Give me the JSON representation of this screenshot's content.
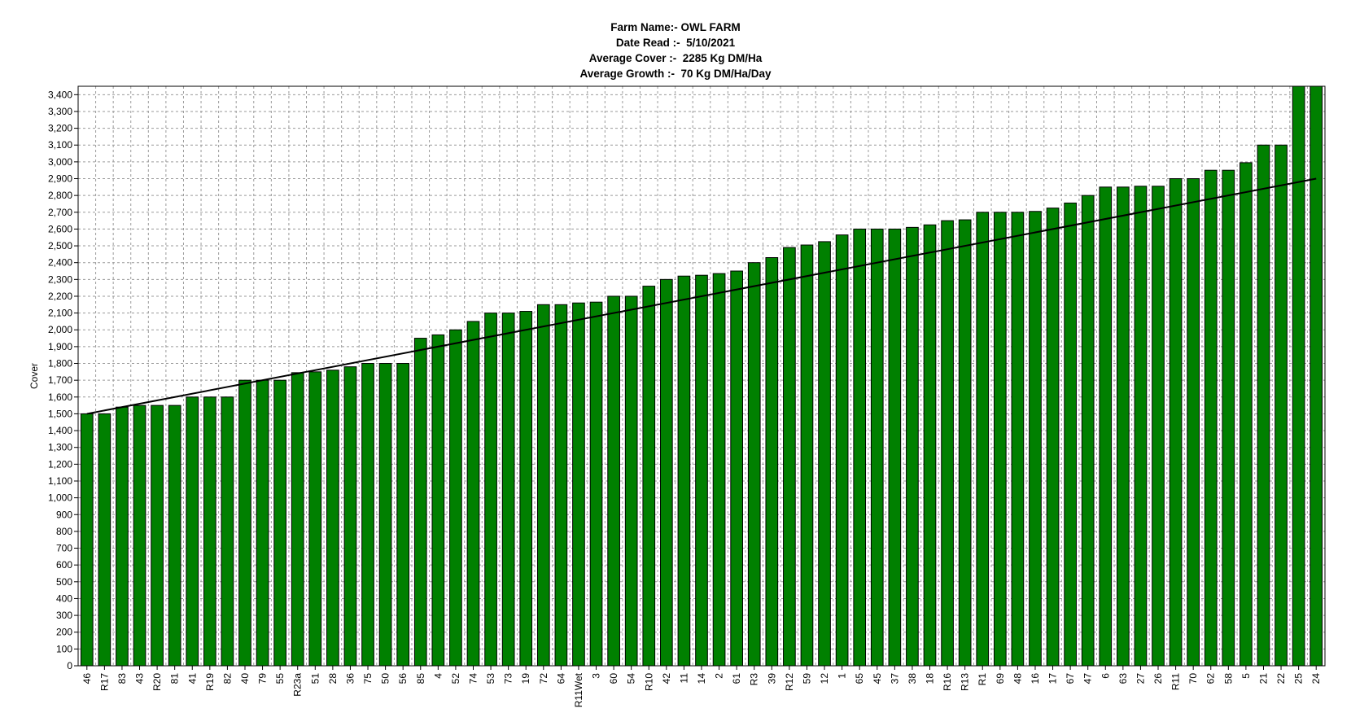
{
  "header": {
    "farm_line": "Farm Name:- OWL FARM",
    "date_line": "Date Read :-  5/10/2021",
    "cover_line": "Average Cover :-  2285 Kg DM/Ha",
    "growth_line": "Average Growth :-  70 Kg DM/Ha/Day"
  },
  "chart_data": {
    "type": "bar",
    "ylabel": "Cover",
    "xlabel": "",
    "ylim": [
      0,
      3450
    ],
    "ytick_step": 100,
    "grid": true,
    "bar_color": "#008000",
    "categories": [
      "46",
      "R17",
      "83",
      "43",
      "R20",
      "81",
      "41",
      "R19",
      "82",
      "40",
      "79",
      "55",
      "R23a",
      "51",
      "28",
      "36",
      "75",
      "50",
      "56",
      "85",
      "4",
      "52",
      "74",
      "53",
      "73",
      "19",
      "72",
      "64",
      "R11Wet",
      "3",
      "60",
      "54",
      "R10",
      "42",
      "11",
      "14",
      "2",
      "61",
      "R3",
      "39",
      "R12",
      "59",
      "12",
      "1",
      "65",
      "45",
      "37",
      "38",
      "18",
      "R16",
      "R13",
      "R1",
      "69",
      "48",
      "16",
      "17",
      "67",
      "47",
      "6",
      "63",
      "27",
      "26",
      "R11",
      "70",
      "62",
      "58",
      "5",
      "21",
      "22",
      "25",
      "24"
    ],
    "values": [
      1500,
      1500,
      1540,
      1550,
      1550,
      1550,
      1600,
      1600,
      1600,
      1700,
      1700,
      1700,
      1745,
      1750,
      1760,
      1780,
      1800,
      1800,
      1800,
      1950,
      1970,
      2000,
      2050,
      2100,
      2100,
      2110,
      2150,
      2150,
      2160,
      2165,
      2200,
      2200,
      2260,
      2300,
      2320,
      2325,
      2335,
      2350,
      2400,
      2430,
      2490,
      2505,
      2525,
      2565,
      2600,
      2600,
      2600,
      2610,
      2625,
      2650,
      2655,
      2700,
      2700,
      2700,
      2705,
      2725,
      2755,
      2800,
      2850,
      2850,
      2855,
      2855,
      2900,
      2900,
      2950,
      2950,
      2995,
      3100,
      3100,
      3450,
      3450
    ],
    "trend_line": {
      "start": 1500,
      "end": 2900,
      "color": "#000000"
    }
  }
}
